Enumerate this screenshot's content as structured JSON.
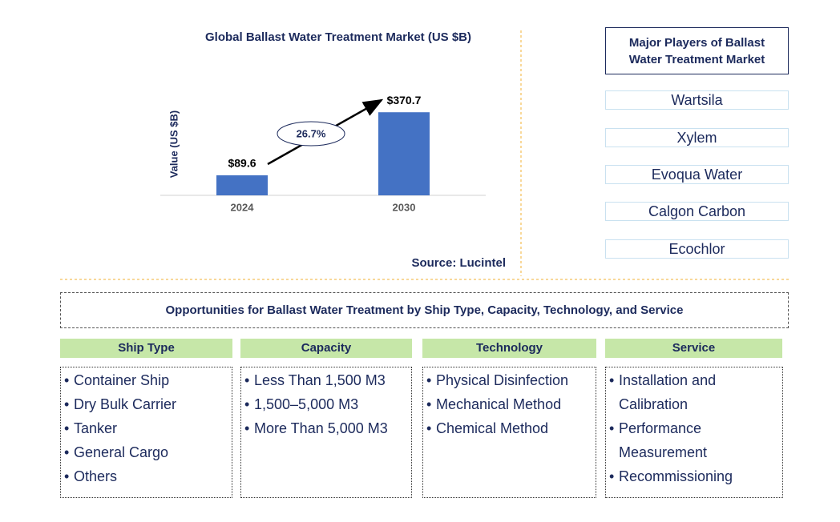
{
  "chart_data": {
    "type": "bar",
    "title": "Global Ballast Water Treatment Market (US $B)",
    "y_label": "Value (US $B)",
    "categories": [
      "2024",
      "2030"
    ],
    "values": [
      89.6,
      370.7
    ],
    "value_labels": [
      "$89.6",
      "$370.7"
    ],
    "color": "#4472c4",
    "ylim": [
      0,
      400
    ],
    "annotation": "26.7%",
    "source": "Source: Lucintel"
  },
  "players": {
    "title": "Major Players of Ballast Water Treatment Market",
    "items": [
      "Wartsila",
      "Xylem",
      "Evoqua Water",
      "Calgon Carbon",
      "Ecochlor"
    ]
  },
  "opportunities": {
    "title": "Opportunities for Ballast Water Treatment by Ship Type, Capacity, Technology, and Service",
    "columns": [
      {
        "header": "Ship Type",
        "items": [
          "Container Ship",
          "Dry Bulk Carrier",
          "Tanker",
          "General Cargo",
          "Others"
        ]
      },
      {
        "header": "Capacity",
        "items": [
          "Less Than 1,500 M3",
          "1,500–5,000 M3",
          "More Than 5,000 M3"
        ]
      },
      {
        "header": "Technology",
        "items": [
          "Physical Disinfection",
          "Mechanical Method",
          "Chemical Method"
        ]
      },
      {
        "header": "Service",
        "items": [
          "Installation and Calibration",
          "Performance Measurement",
          "Recommissioning"
        ]
      }
    ]
  }
}
